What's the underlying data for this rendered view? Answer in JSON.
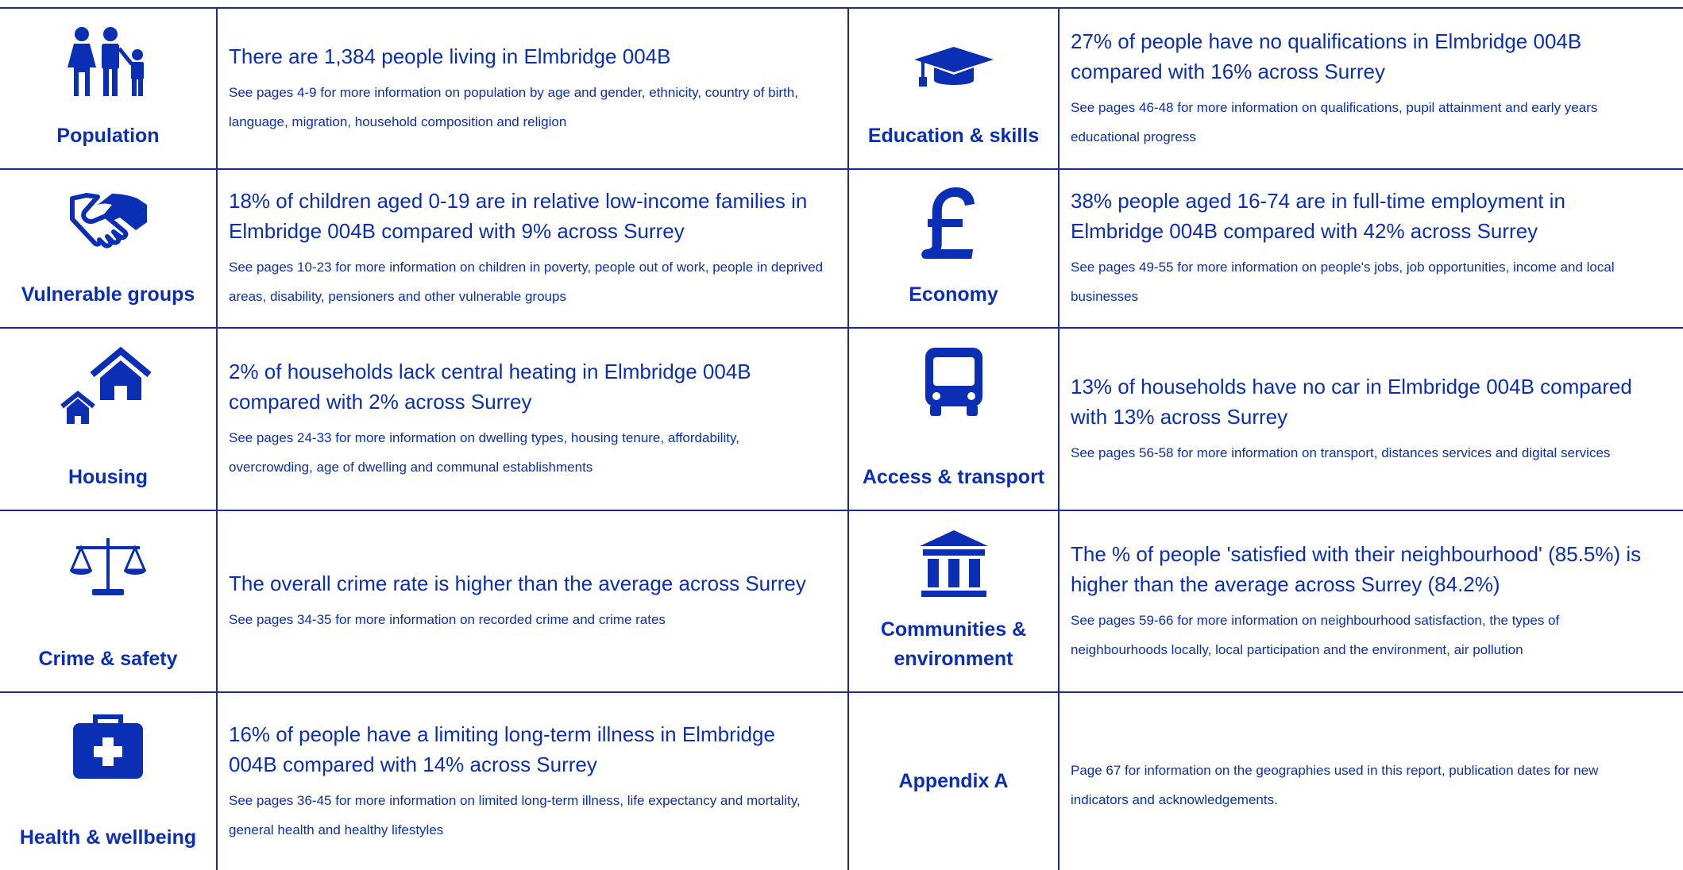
{
  "rows": [
    {
      "left": {
        "label": "Population",
        "headline": "There are 1,384 people living in Elmbridge 004B",
        "detail": "See pages 4-9 for more information on population by age and gender, ethnicity, country of birth, language, migration, household composition and religion"
      },
      "right": {
        "label": "Education & skills",
        "headline": "27% of people have no qualifications in Elmbridge 004B compared with 16% across Surrey",
        "detail": "See pages 46-48 for more information on qualifications, pupil attainment and early years educational progress"
      }
    },
    {
      "left": {
        "label": "Vulnerable groups",
        "headline": "18% of children aged 0-19 are in relative low-income families in Elmbridge 004B compared with 9% across Surrey",
        "detail": "See pages 10-23 for more information on children in poverty, people out of work, people in deprived areas, disability, pensioners and other vulnerable groups"
      },
      "right": {
        "label": "Economy",
        "headline": "38% people aged 16-74 are in full-time employment in Elmbridge 004B compared with 42% across Surrey",
        "detail": "See pages 49-55 for more information on people's jobs, job opportunities, income and local businesses"
      }
    },
    {
      "left": {
        "label": "Housing",
        "headline": "2% of households lack central heating in Elmbridge 004B compared with 2% across Surrey",
        "detail": "See pages 24-33 for more information on dwelling types, housing tenure, affordability, overcrowding, age of dwelling and communal establishments"
      },
      "right": {
        "label": "Access & transport",
        "headline": "13% of households have no car in Elmbridge 004B compared with 13% across Surrey",
        "detail": "See pages 56-58 for more information on transport, distances services and digital services"
      }
    },
    {
      "left": {
        "label": "Crime & safety",
        "headline": "The overall crime rate is higher than the average across Surrey",
        "detail": "See pages 34-35 for more information on recorded crime and crime rates"
      },
      "right": {
        "label": "Communities & environment",
        "headline": "The % of people 'satisfied with their neighbourhood' (85.5%) is higher than the average across Surrey (84.2%)",
        "detail": "See pages 59-66 for more information on neighbourhood satisfaction, the types of neighbourhoods locally, local participation and the environment, air pollution"
      }
    },
    {
      "left": {
        "label": "Health & wellbeing",
        "headline": "16% of people have a limiting long-term illness in Elmbridge 004B compared with 14% across Surrey",
        "detail": "See pages 36-45 for more information on limited long-term illness, life expectancy and mortality, general health and healthy lifestyles"
      },
      "right": {
        "label": "Appendix A",
        "detail": "Page 67 for information on the geographies used in this report, publication dates for new indicators and acknowledgements."
      }
    }
  ]
}
